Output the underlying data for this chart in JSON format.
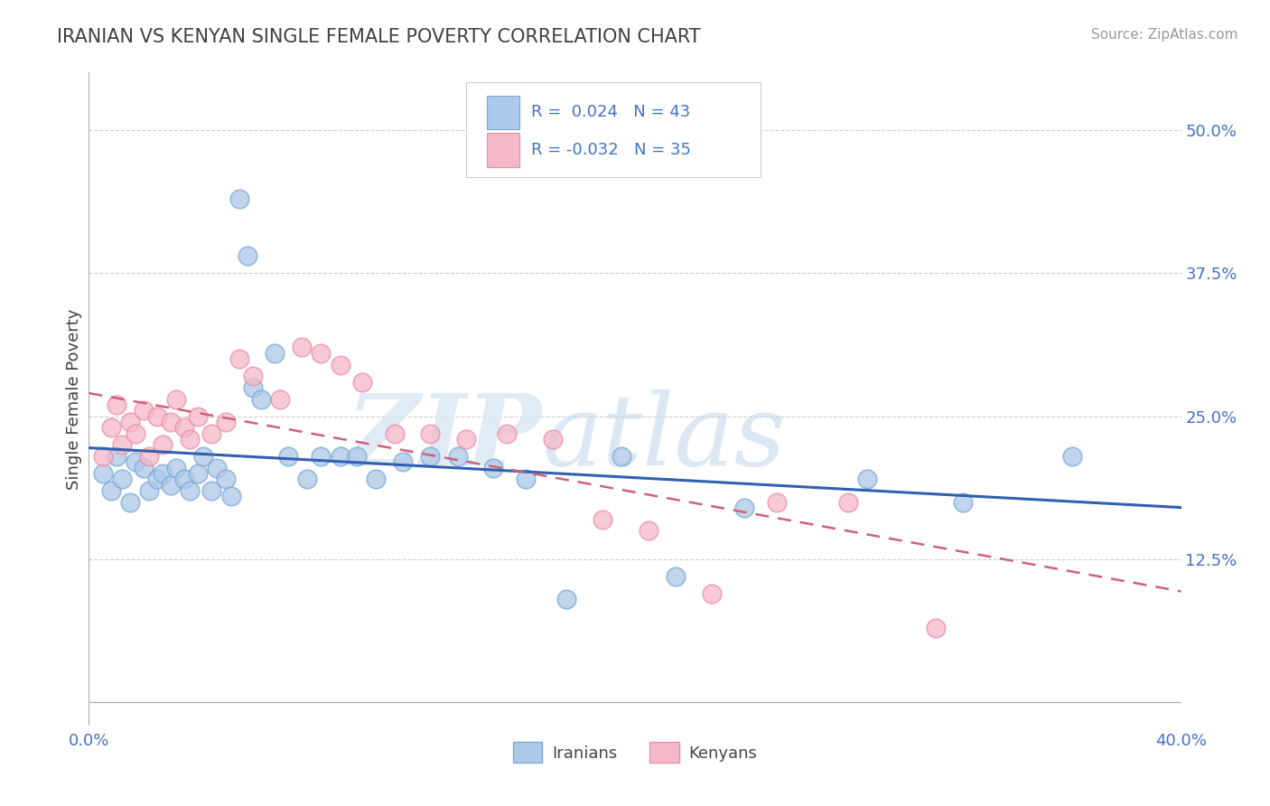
{
  "title": "IRANIAN VS KENYAN SINGLE FEMALE POVERTY CORRELATION CHART",
  "source": "Source: ZipAtlas.com",
  "ylabel": "Single Female Poverty",
  "xlim": [
    0.0,
    0.4
  ],
  "ylim": [
    -0.02,
    0.55
  ],
  "xticks": [
    0.0,
    0.05,
    0.1,
    0.15,
    0.2,
    0.25,
    0.3,
    0.35,
    0.4
  ],
  "xticklabels": [
    "0.0%",
    "",
    "",
    "",
    "",
    "",
    "",
    "",
    "40.0%"
  ],
  "ytick_positions": [
    0.0,
    0.125,
    0.25,
    0.375,
    0.5
  ],
  "yticklabels": [
    "",
    "12.5%",
    "25.0%",
    "37.5%",
    "50.0%"
  ],
  "iranian_color": "#adc8e8",
  "kenyan_color": "#f5b8c8",
  "iranian_edge_color": "#7baad4",
  "kenyan_edge_color": "#e890aa",
  "iranian_line_color": "#3060b0",
  "kenyan_line_color": "#d0607a",
  "R_iranian": 0.024,
  "N_iranian": 43,
  "R_kenyan": -0.032,
  "N_kenyan": 35,
  "watermark_zip": "ZIP",
  "watermark_atlas": "atlas",
  "background_color": "#ffffff",
  "grid_color": "#c8c8c8",
  "title_color": "#404040",
  "axis_label_color": "#4472c4",
  "iranians_x": [
    0.005,
    0.008,
    0.01,
    0.012,
    0.015,
    0.017,
    0.02,
    0.022,
    0.025,
    0.027,
    0.03,
    0.032,
    0.035,
    0.037,
    0.04,
    0.042,
    0.045,
    0.047,
    0.05,
    0.052,
    0.055,
    0.058,
    0.06,
    0.063,
    0.068,
    0.073,
    0.08,
    0.085,
    0.092,
    0.098,
    0.105,
    0.115,
    0.125,
    0.135,
    0.148,
    0.16,
    0.175,
    0.195,
    0.215,
    0.24,
    0.285,
    0.32,
    0.36
  ],
  "iranians_y": [
    0.2,
    0.185,
    0.215,
    0.195,
    0.175,
    0.21,
    0.205,
    0.185,
    0.195,
    0.2,
    0.19,
    0.205,
    0.195,
    0.185,
    0.2,
    0.215,
    0.185,
    0.205,
    0.195,
    0.18,
    0.44,
    0.39,
    0.275,
    0.265,
    0.305,
    0.215,
    0.195,
    0.215,
    0.215,
    0.215,
    0.195,
    0.21,
    0.215,
    0.215,
    0.205,
    0.195,
    0.09,
    0.215,
    0.11,
    0.17,
    0.195,
    0.175,
    0.215
  ],
  "kenyans_x": [
    0.005,
    0.008,
    0.01,
    0.012,
    0.015,
    0.017,
    0.02,
    0.022,
    0.025,
    0.027,
    0.03,
    0.032,
    0.035,
    0.037,
    0.04,
    0.045,
    0.05,
    0.055,
    0.06,
    0.07,
    0.078,
    0.085,
    0.092,
    0.1,
    0.112,
    0.125,
    0.138,
    0.153,
    0.17,
    0.188,
    0.205,
    0.228,
    0.252,
    0.278,
    0.31
  ],
  "kenyans_y": [
    0.215,
    0.24,
    0.26,
    0.225,
    0.245,
    0.235,
    0.255,
    0.215,
    0.25,
    0.225,
    0.245,
    0.265,
    0.24,
    0.23,
    0.25,
    0.235,
    0.245,
    0.3,
    0.285,
    0.265,
    0.31,
    0.305,
    0.295,
    0.28,
    0.235,
    0.235,
    0.23,
    0.235,
    0.23,
    0.16,
    0.15,
    0.095,
    0.175,
    0.175,
    0.065
  ]
}
